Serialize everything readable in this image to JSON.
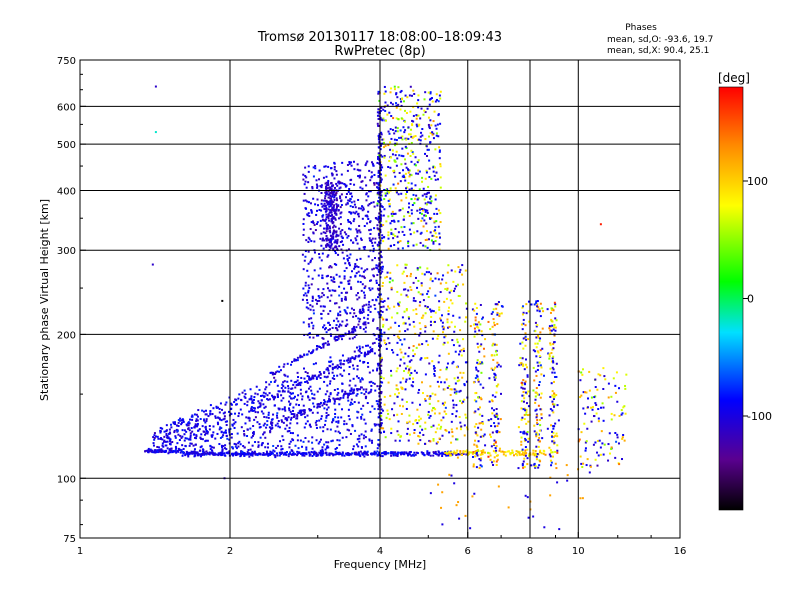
{
  "title_line1": "Tromsø 20130117 18:08:00–18:09:43",
  "title_line2": "RwPretec (8p)",
  "phases_box": {
    "heading": "Phases",
    "line_o": "mean, sd,O: -93.6, 19.7",
    "line_x": "mean, sd,X:  90.4, 25.1"
  },
  "chart_data": {
    "type": "scatter",
    "xlabel": "Frequency [MHz]",
    "ylabel": "Stationary phase Virtual Height [km]",
    "x_scale": "log",
    "y_scale": "log",
    "xlim": [
      1,
      16
    ],
    "ylim": [
      75,
      750
    ],
    "x_ticks": [
      1,
      2,
      4,
      6,
      8,
      10,
      16
    ],
    "y_ticks": [
      75,
      100,
      200,
      300,
      400,
      500,
      600,
      750
    ],
    "x_gridlines": [
      2,
      4,
      6,
      8,
      10
    ],
    "y_gridlines": [
      100,
      200,
      300,
      400,
      500,
      600
    ],
    "grid": true,
    "colorbar": {
      "label": "[deg]",
      "range": [
        -180,
        180
      ],
      "ticks": [
        -100,
        0,
        100
      ],
      "colormap": "rainbow (black → purple → blue → cyan → green → yellow → orange → red)"
    },
    "clusters": [
      {
        "label": "E-region trace (blue, O-mode)",
        "x_range": [
          1.3,
          6.0
        ],
        "y_range": [
          110,
          115
        ],
        "phase_mean": -95
      },
      {
        "label": "E-region trace X-mode (yellow/orange)",
        "x_range": [
          5.5,
          8.5
        ],
        "y_range": [
          110,
          116
        ],
        "phase_mean": 100
      },
      {
        "label": "Lower spread (blue)",
        "x_range": [
          1.4,
          4.0
        ],
        "y_range": [
          112,
          180
        ],
        "phase_mean": -95
      },
      {
        "label": "F-region spread O-mode",
        "x_range": [
          2.8,
          4.0
        ],
        "y_range": [
          200,
          450
        ],
        "phase_mean": -95
      },
      {
        "label": "High F spread mixed phase",
        "x_range": [
          4.0,
          5.2
        ],
        "y_range": [
          300,
          650
        ],
        "phase_mean": 40
      },
      {
        "label": "Mid spread mixed phase",
        "x_range": [
          4.0,
          10.0
        ],
        "y_range": [
          110,
          260
        ],
        "phase_mean": 60
      },
      {
        "label": "Scattered high-frequency echoes",
        "x_range": [
          10.0,
          12.5
        ],
        "y_range": [
          100,
          170
        ],
        "phase_mean": 90
      }
    ],
    "outliers": [
      {
        "x": 1.42,
        "y": 660,
        "phase": -110
      },
      {
        "x": 1.42,
        "y": 530,
        "phase": -20
      },
      {
        "x": 1.4,
        "y": 280,
        "phase": -110
      },
      {
        "x": 1.93,
        "y": 235,
        "phase": -190
      },
      {
        "x": 1.95,
        "y": 100,
        "phase": -110
      },
      {
        "x": 11.1,
        "y": 340,
        "phase": 170
      }
    ]
  }
}
